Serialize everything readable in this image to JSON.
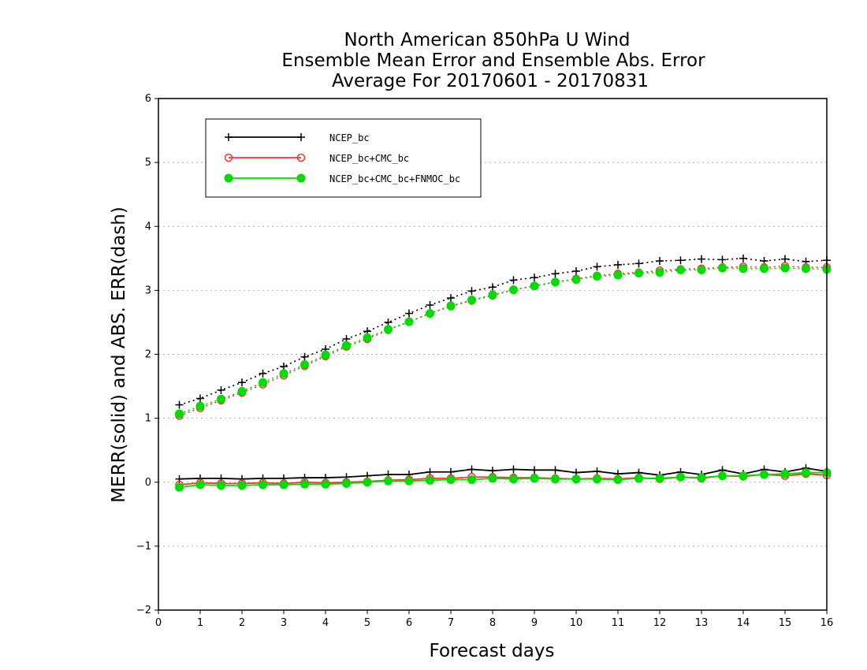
{
  "chart_data": {
    "type": "line",
    "title": [
      "North American 850hPa U Wind",
      "Ensemble Mean Error and Ensemble Abs. Error",
      "Average For 20170601 - 20170831"
    ],
    "xlabel": "Forecast days",
    "ylabel": "MERR(solid) and ABS. ERR(dash)",
    "xlim": [
      0,
      16
    ],
    "ylim": [
      -2,
      6
    ],
    "xticks": [
      "0",
      "1",
      "2",
      "3",
      "4",
      "5",
      "6",
      "7",
      "8",
      "9",
      "10",
      "11",
      "12",
      "13",
      "14",
      "15",
      "16"
    ],
    "yticks": [
      "−2",
      "−1",
      "0",
      "1",
      "2",
      "3",
      "4",
      "5",
      "6"
    ],
    "grid": "horizontal dotted",
    "legend": {
      "placement": "top-left",
      "entries": [
        "NCEP_bc",
        "NCEP_bc+CMC_bc",
        "NCEP_bc+CMC_bc+FNMOC_bc"
      ]
    },
    "x": [
      0.5,
      1.0,
      1.5,
      2.0,
      2.5,
      3.0,
      3.5,
      4.0,
      4.5,
      5.0,
      5.5,
      6.0,
      6.5,
      7.0,
      7.5,
      8.0,
      8.5,
      9.0,
      9.5,
      10.0,
      10.5,
      11.0,
      11.5,
      12.0,
      12.5,
      13.0,
      13.5,
      14.0,
      14.5,
      15.0,
      15.5,
      16.0
    ],
    "series": [
      {
        "name": "NCEP_bc",
        "style": "solid",
        "color": "#000000",
        "marker": "plus",
        "values": [
          0.05,
          0.06,
          0.06,
          0.05,
          0.06,
          0.06,
          0.07,
          0.07,
          0.08,
          0.1,
          0.12,
          0.12,
          0.16,
          0.16,
          0.2,
          0.18,
          0.2,
          0.19,
          0.19,
          0.15,
          0.17,
          0.13,
          0.15,
          0.11,
          0.16,
          0.12,
          0.19,
          0.13,
          0.2,
          0.16,
          0.22,
          0.17
        ]
      },
      {
        "name": "NCEP_bc+CMC_bc",
        "style": "solid",
        "color": "#ff3030",
        "marker": "open-circle",
        "values": [
          -0.04,
          -0.01,
          -0.02,
          -0.02,
          -0.01,
          -0.02,
          0.0,
          -0.01,
          0.0,
          0.01,
          0.03,
          0.04,
          0.06,
          0.06,
          0.08,
          0.08,
          0.07,
          0.07,
          0.06,
          0.05,
          0.06,
          0.05,
          0.07,
          0.05,
          0.08,
          0.06,
          0.1,
          0.09,
          0.12,
          0.1,
          0.13,
          0.11
        ]
      },
      {
        "name": "NCEP_bc+CMC_bc+FNMOC_bc",
        "style": "solid",
        "color": "#00dd00",
        "marker": "filled-circle",
        "values": [
          -0.08,
          -0.04,
          -0.05,
          -0.05,
          -0.04,
          -0.04,
          -0.03,
          -0.03,
          -0.02,
          0.0,
          0.02,
          0.02,
          0.03,
          0.04,
          0.04,
          0.06,
          0.05,
          0.06,
          0.05,
          0.05,
          0.05,
          0.04,
          0.06,
          0.06,
          0.08,
          0.07,
          0.1,
          0.1,
          0.12,
          0.13,
          0.15,
          0.15
        ]
      },
      {
        "name": "NCEP_bc",
        "style": "dotted",
        "color": "#000000",
        "marker": "plus",
        "values": [
          1.21,
          1.31,
          1.44,
          1.56,
          1.7,
          1.81,
          1.96,
          2.08,
          2.24,
          2.36,
          2.5,
          2.64,
          2.77,
          2.88,
          2.99,
          3.05,
          3.16,
          3.2,
          3.26,
          3.3,
          3.37,
          3.4,
          3.42,
          3.46,
          3.47,
          3.49,
          3.48,
          3.5,
          3.46,
          3.49,
          3.45,
          3.47
        ]
      },
      {
        "name": "NCEP_bc+CMC_bc",
        "style": "dotted",
        "color": "#ff3030",
        "marker": "open-circle",
        "values": [
          1.04,
          1.16,
          1.28,
          1.4,
          1.53,
          1.67,
          1.82,
          1.97,
          2.12,
          2.24,
          2.38,
          2.51,
          2.64,
          2.75,
          2.84,
          2.92,
          3.01,
          3.07,
          3.13,
          3.18,
          3.23,
          3.26,
          3.28,
          3.31,
          3.33,
          3.34,
          3.36,
          3.37,
          3.36,
          3.38,
          3.36,
          3.36
        ]
      },
      {
        "name": "NCEP_bc+CMC_bc+FNMOC_bc",
        "style": "dotted",
        "color": "#00dd00",
        "marker": "filled-circle",
        "values": [
          1.07,
          1.19,
          1.3,
          1.42,
          1.56,
          1.7,
          1.84,
          1.99,
          2.14,
          2.26,
          2.39,
          2.51,
          2.64,
          2.76,
          2.85,
          2.93,
          3.01,
          3.07,
          3.13,
          3.17,
          3.22,
          3.24,
          3.27,
          3.28,
          3.32,
          3.32,
          3.35,
          3.34,
          3.34,
          3.35,
          3.34,
          3.33
        ]
      }
    ]
  }
}
